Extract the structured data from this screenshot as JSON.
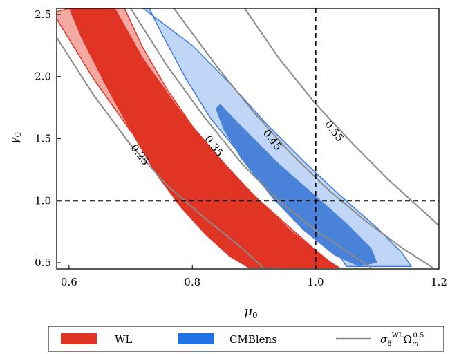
{
  "chart_data": {
    "type": "contour",
    "xlabel": "μ",
    "xlabel_sub": "0",
    "ylabel": "γ",
    "ylabel_sub": "0",
    "xlim": [
      0.58,
      1.2
    ],
    "ylim": [
      0.45,
      2.55
    ],
    "x_ticks": [
      {
        "value": 0.6,
        "label": "0.6"
      },
      {
        "value": 0.8,
        "label": "0.8"
      },
      {
        "value": 1.0,
        "label": "1.0"
      },
      {
        "value": 1.2,
        "label": "1.2"
      }
    ],
    "y_ticks": [
      {
        "value": 0.5,
        "label": "0.5"
      },
      {
        "value": 1.0,
        "label": "1.0"
      },
      {
        "value": 1.5,
        "label": "1.5"
      },
      {
        "value": 2.0,
        "label": "2.0"
      },
      {
        "value": 2.5,
        "label": "2.5"
      }
    ],
    "reference_lines": {
      "x": 1.0,
      "y": 1.0,
      "style": "dashed",
      "color": "#000000"
    },
    "contours": [
      {
        "label": "0.25",
        "label_pos": {
          "x": 0.715,
          "y": 1.37
        },
        "points": [
          [
            0.578,
            2.33
          ],
          [
            0.64,
            1.85
          ],
          [
            0.7,
            1.45
          ],
          [
            0.76,
            1.12
          ],
          [
            0.82,
            0.86
          ],
          [
            0.88,
            0.62
          ],
          [
            0.915,
            0.46
          ]
        ]
      },
      {
        "label": "0.35",
        "label_pos": {
          "x": 0.835,
          "y": 1.44
        },
        "points": [
          [
            0.7,
            2.55
          ],
          [
            0.76,
            2.08
          ],
          [
            0.82,
            1.67
          ],
          [
            0.88,
            1.3
          ],
          [
            0.94,
            1.0
          ],
          [
            1.0,
            0.76
          ],
          [
            1.06,
            0.56
          ],
          [
            1.09,
            0.46
          ]
        ]
      },
      {
        "label": "0.45",
        "label_pos": {
          "x": 0.93,
          "y": 1.49
        },
        "points": [
          [
            0.77,
            2.55
          ],
          [
            0.84,
            2.08
          ],
          [
            0.9,
            1.71
          ],
          [
            0.96,
            1.38
          ],
          [
            1.02,
            1.09
          ],
          [
            1.08,
            0.84
          ],
          [
            1.14,
            0.62
          ],
          [
            1.19,
            0.46
          ]
        ]
      },
      {
        "label": "0.55",
        "label_pos": {
          "x": 1.03,
          "y": 1.56
        },
        "points": [
          [
            0.885,
            2.55
          ],
          [
            0.94,
            2.15
          ],
          [
            1.0,
            1.78
          ],
          [
            1.06,
            1.46
          ],
          [
            1.12,
            1.16
          ],
          [
            1.18,
            0.89
          ],
          [
            1.2,
            0.8
          ]
        ]
      }
    ],
    "regions": [
      {
        "series": "WL",
        "level": "95",
        "fill": "#f4a9a2",
        "stroke": "#e03524",
        "points": [
          [
            0.578,
            2.48
          ],
          [
            0.64,
            1.98
          ],
          [
            0.7,
            1.56
          ],
          [
            0.76,
            1.22
          ],
          [
            0.82,
            0.93
          ],
          [
            0.88,
            0.68
          ],
          [
            0.94,
            0.46
          ],
          [
            1.035,
            0.46
          ],
          [
            1.0,
            0.6
          ],
          [
            0.95,
            0.82
          ],
          [
            0.9,
            1.04
          ],
          [
            0.85,
            1.31
          ],
          [
            0.8,
            1.6
          ],
          [
            0.76,
            1.89
          ],
          [
            0.72,
            2.23
          ],
          [
            0.69,
            2.55
          ],
          [
            0.6,
            2.55
          ],
          [
            0.578,
            2.52
          ]
        ]
      },
      {
        "series": "WL",
        "level": "68",
        "fill": "#e03524",
        "stroke": "none",
        "points": [
          [
            0.675,
            2.55
          ],
          [
            0.72,
            2.15
          ],
          [
            0.78,
            1.73
          ],
          [
            0.84,
            1.36
          ],
          [
            0.9,
            1.05
          ],
          [
            0.96,
            0.76
          ],
          [
            1.02,
            0.52
          ],
          [
            1.04,
            0.46
          ],
          [
            0.89,
            0.46
          ],
          [
            0.86,
            0.55
          ],
          [
            0.82,
            0.73
          ],
          [
            0.78,
            0.95
          ],
          [
            0.74,
            1.22
          ],
          [
            0.7,
            1.56
          ],
          [
            0.66,
            1.92
          ],
          [
            0.62,
            2.31
          ],
          [
            0.6,
            2.55
          ]
        ]
      },
      {
        "series": "CMBlens",
        "level": "95",
        "fill": "rgba(48,120,230,0.30)",
        "stroke": "#3a78e0",
        "points": [
          [
            0.72,
            2.55
          ],
          [
            0.8,
            2.25
          ],
          [
            0.86,
            1.95
          ],
          [
            0.92,
            1.62
          ],
          [
            0.98,
            1.32
          ],
          [
            1.04,
            1.04
          ],
          [
            1.1,
            0.78
          ],
          [
            1.14,
            0.58
          ],
          [
            1.155,
            0.47
          ],
          [
            1.05,
            0.47
          ],
          [
            1.04,
            0.55
          ],
          [
            1.0,
            0.78
          ],
          [
            0.94,
            1.05
          ],
          [
            0.88,
            1.36
          ],
          [
            0.83,
            1.66
          ],
          [
            0.79,
            1.98
          ],
          [
            0.75,
            2.35
          ],
          [
            0.73,
            2.55
          ]
        ]
      },
      {
        "series": "CMBlens",
        "level": "68",
        "fill": "#4a82d9",
        "stroke": "none",
        "points": [
          [
            0.845,
            1.78
          ],
          [
            0.88,
            1.6
          ],
          [
            0.94,
            1.3
          ],
          [
            1.0,
            1.04
          ],
          [
            1.05,
            0.82
          ],
          [
            1.09,
            0.62
          ],
          [
            1.1,
            0.5
          ],
          [
            1.07,
            0.47
          ],
          [
            1.03,
            0.56
          ],
          [
            0.98,
            0.76
          ],
          [
            0.93,
            1.02
          ],
          [
            0.88,
            1.33
          ],
          [
            0.85,
            1.58
          ],
          [
            0.838,
            1.74
          ]
        ]
      }
    ],
    "legend": {
      "placement": "bottom",
      "entries": [
        {
          "label": "WL",
          "color": "#e03524",
          "kind": "patch"
        },
        {
          "label": "CMBlens",
          "color": "#1f73e3",
          "kind": "patch"
        },
        {
          "label": "σ",
          "sub": "8",
          "sup": "WL",
          "label2": "Ω",
          "sub2": "m",
          "sup2": "0.5",
          "color": "#8a8a8a",
          "kind": "line"
        }
      ]
    }
  }
}
